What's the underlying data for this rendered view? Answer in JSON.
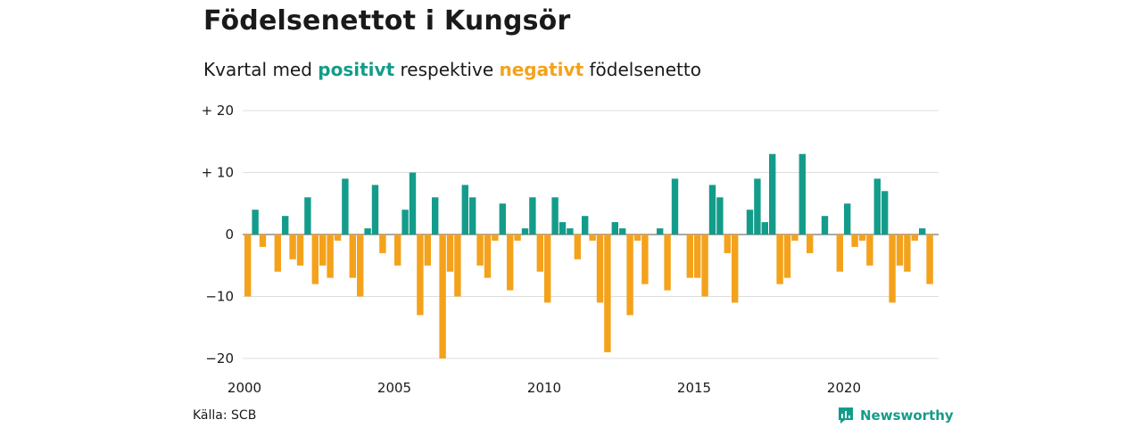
{
  "title": "Födelsenettot i Kungsör",
  "subtitle": {
    "prefix": "Kvartal med",
    "positive_word": "positivt",
    "middle": "respektive",
    "negative_word": "negativt",
    "suffix": "födelsenetto"
  },
  "source": "Källa: SCB",
  "brand": "Newsworthy",
  "colors": {
    "positive": "#149c8a",
    "negative": "#f4a21c",
    "grid": "#dddddd",
    "text": "#1a1a1a"
  },
  "chart_data": {
    "type": "bar",
    "title": "Födelsenettot i Kungsör",
    "x_start": "2000 Q1",
    "x_ticks": [
      "2000",
      "2005",
      "2010",
      "2015",
      "2020"
    ],
    "y_ticks": [
      "+ 20",
      "+ 10",
      "0",
      "−10",
      "−20"
    ],
    "y_tick_values": [
      20,
      10,
      0,
      -10,
      -20
    ],
    "ylim": [
      -20,
      20
    ],
    "grid": true,
    "values": [
      -10,
      4,
      -2,
      0,
      -6,
      3,
      -4,
      -5,
      6,
      -8,
      -5,
      -7,
      -1,
      9,
      -7,
      -10,
      1,
      8,
      -3,
      0,
      -5,
      4,
      10,
      -13,
      -5,
      6,
      -20,
      -6,
      -10,
      8,
      6,
      -5,
      -7,
      -1,
      5,
      -9,
      -1,
      1,
      6,
      -6,
      -11,
      6,
      2,
      1,
      -4,
      3,
      -1,
      -11,
      -19,
      2,
      1,
      -13,
      -1,
      -8,
      0,
      1,
      -9,
      9,
      0,
      -7,
      -7,
      -10,
      8,
      6,
      -3,
      -11,
      0,
      4,
      9,
      2,
      13,
      -8,
      -7,
      -1,
      13,
      -3,
      0,
      3,
      0,
      -6,
      5,
      -2,
      -1,
      -5,
      9,
      7,
      -11,
      -5,
      -6,
      -1,
      1,
      -8
    ]
  }
}
